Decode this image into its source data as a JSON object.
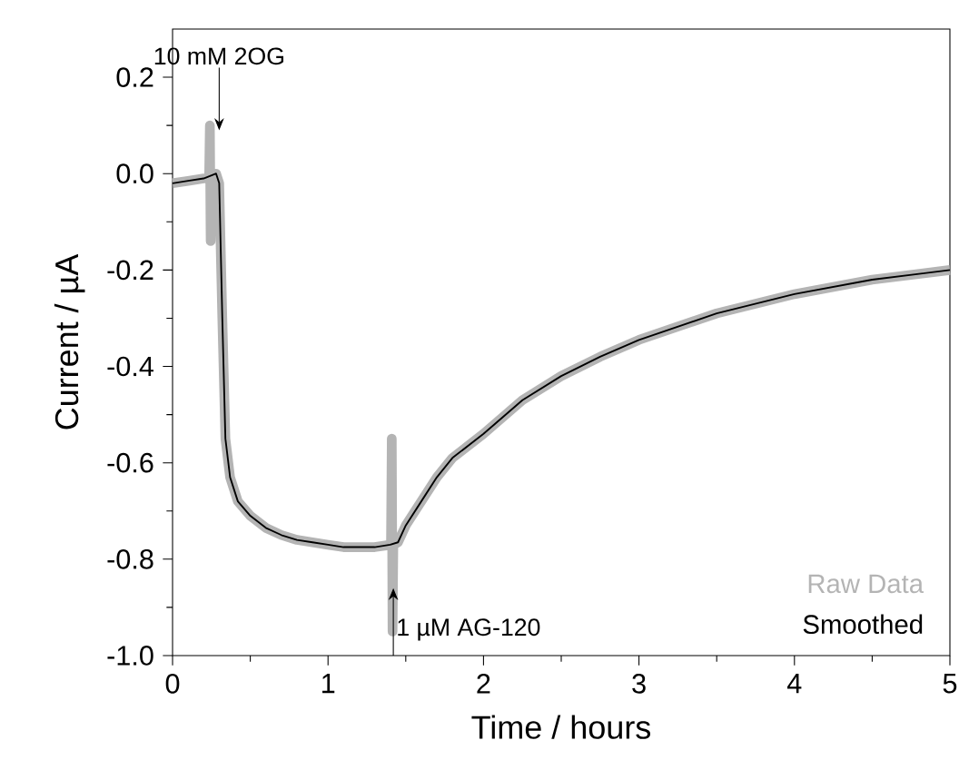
{
  "chart_data": {
    "type": "line",
    "xlabel": "Time / hours",
    "ylabel": "Current / µA",
    "xlim": [
      0,
      5
    ],
    "ylim": [
      -1.0,
      0.3
    ],
    "xticks": [
      0,
      1,
      2,
      3,
      4,
      5
    ],
    "yticks": [
      {
        "value": -1.0,
        "label": "-1.0"
      },
      {
        "value": -0.8,
        "label": "-0.8"
      },
      {
        "value": -0.6,
        "label": "-0.6"
      },
      {
        "value": -0.4,
        "label": "-0.4"
      },
      {
        "value": -0.2,
        "label": "-0.2"
      },
      {
        "value": 0.0,
        "label": "0.0"
      },
      {
        "value": 0.2,
        "label": "0.2"
      }
    ],
    "legend": "bottom right",
    "grid": false,
    "line_style": "solid",
    "marker": "none",
    "annotations": [
      {
        "text": "10 mM 2OG",
        "x": 0.3,
        "y": 0.09
      },
      {
        "text": "1 µM AG-120",
        "x": 1.42,
        "y": -0.86
      }
    ],
    "series": [
      {
        "name": "Raw Data",
        "color": "#b4b4b4",
        "x": [
          0,
          0.1,
          0.2,
          0.235,
          0.24,
          0.245,
          0.25,
          0.28,
          0.3,
          0.32,
          0.34,
          0.37,
          0.42,
          0.5,
          0.6,
          0.7,
          0.8,
          0.9,
          1.0,
          1.1,
          1.2,
          1.3,
          1.405,
          1.41,
          1.415,
          1.42,
          1.45,
          1.5,
          1.6,
          1.7,
          1.8,
          2.0,
          2.25,
          2.5,
          2.75,
          3.0,
          3.5,
          4.0,
          4.5,
          5.0
        ],
        "values": [
          -0.02,
          -0.015,
          -0.01,
          -0.01,
          0.1,
          -0.14,
          0.0,
          0.0,
          -0.02,
          -0.3,
          -0.55,
          -0.63,
          -0.68,
          -0.71,
          -0.735,
          -0.75,
          -0.76,
          -0.765,
          -0.77,
          -0.775,
          -0.775,
          -0.775,
          -0.77,
          -0.55,
          -0.95,
          -0.77,
          -0.765,
          -0.73,
          -0.68,
          -0.63,
          -0.59,
          -0.54,
          -0.47,
          -0.42,
          -0.38,
          -0.345,
          -0.29,
          -0.25,
          -0.22,
          -0.2
        ]
      },
      {
        "name": "Smoothed",
        "color": "#000000",
        "x": [
          0,
          0.1,
          0.2,
          0.28,
          0.3,
          0.32,
          0.34,
          0.37,
          0.42,
          0.5,
          0.6,
          0.7,
          0.8,
          0.9,
          1.0,
          1.1,
          1.2,
          1.3,
          1.4,
          1.45,
          1.5,
          1.6,
          1.7,
          1.8,
          2.0,
          2.25,
          2.5,
          2.75,
          3.0,
          3.5,
          4.0,
          4.5,
          5.0
        ],
        "values": [
          -0.02,
          -0.015,
          -0.01,
          0.0,
          -0.02,
          -0.3,
          -0.55,
          -0.63,
          -0.68,
          -0.71,
          -0.735,
          -0.75,
          -0.76,
          -0.765,
          -0.77,
          -0.775,
          -0.775,
          -0.775,
          -0.77,
          -0.765,
          -0.73,
          -0.68,
          -0.63,
          -0.59,
          -0.54,
          -0.47,
          -0.42,
          -0.38,
          -0.345,
          -0.29,
          -0.25,
          -0.22,
          -0.2
        ]
      }
    ]
  }
}
